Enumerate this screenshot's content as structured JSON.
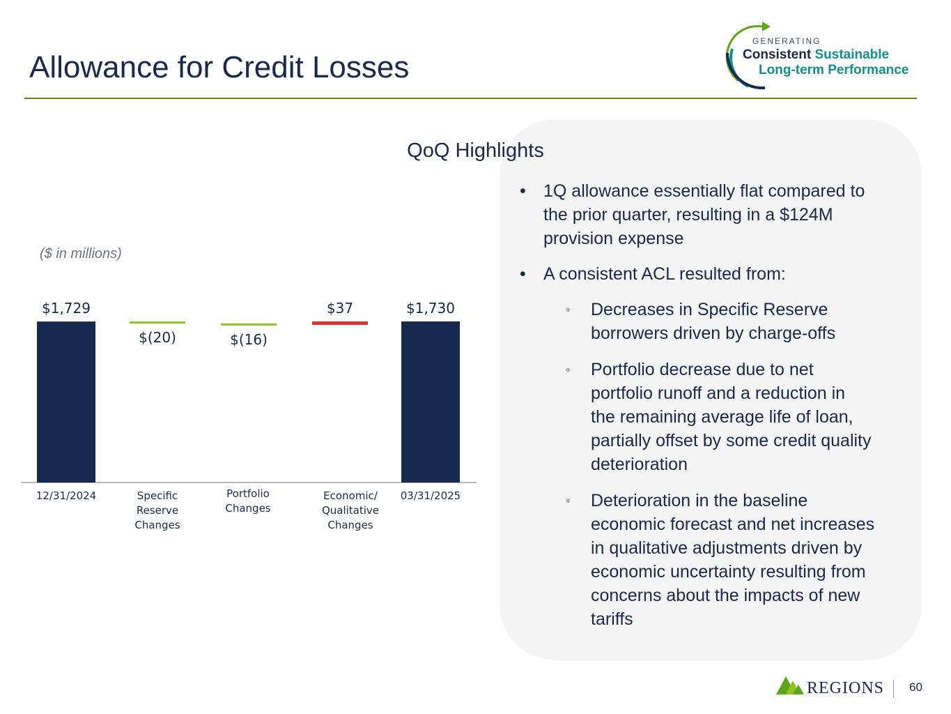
{
  "header": {
    "title": "Allowance for Credit Losses",
    "tagline": {
      "small": "GENERATING",
      "word1": "Consistent",
      "word2": "Sustainable",
      "line2": "Long-term Performance"
    }
  },
  "colors": {
    "navy": "#17294d",
    "decrease": "#8dc21f",
    "increase": "#e0322d",
    "rule": "#5e8a1f",
    "teal": "#13908a"
  },
  "chart_data": {
    "type": "bar",
    "subtype": "waterfall",
    "units_note": "($ in millions)",
    "categories": [
      [
        "12/31/2024"
      ],
      [
        "Specific",
        "Reserve",
        "Changes"
      ],
      [
        "Portfolio",
        "Changes"
      ],
      [
        "Economic/",
        "Qualitative",
        "Changes"
      ],
      [
        "03/31/2025"
      ]
    ],
    "values": [
      1729,
      -20,
      -16,
      37,
      1730
    ],
    "value_labels": [
      "$1,729",
      "$(20)",
      "$(16)",
      "$37",
      "$1,730"
    ],
    "kinds": [
      "total",
      "decrease",
      "decrease",
      "increase",
      "total"
    ],
    "ylim": [
      0,
      1800
    ],
    "title": "",
    "xlabel": "",
    "ylabel": ""
  },
  "highlights": {
    "title": "QoQ Highlights",
    "bullets": [
      {
        "level": 1,
        "lines": [
          "1Q allowance essentially flat compared to",
          "the prior quarter, resulting in a $124M",
          "provision expense"
        ]
      },
      {
        "level": 1,
        "lines": [
          "A consistent ACL resulted from:"
        ]
      },
      {
        "level": 2,
        "lines": [
          "Decreases in Specific Reserve",
          "borrowers driven by charge-offs"
        ]
      },
      {
        "level": 2,
        "lines": [
          "Portfolio decrease due to net",
          "portfolio runoff and a reduction in",
          "the remaining average life of loan,",
          "partially offset by some credit quality",
          "deterioration"
        ]
      },
      {
        "level": 2,
        "lines": [
          "Deterioration in the baseline",
          "economic forecast and net increases",
          "in qualitative adjustments driven by",
          "economic uncertainty resulting from",
          "concerns about the impacts of new",
          "tariffs"
        ]
      }
    ]
  },
  "footer": {
    "brand": "REGIONS",
    "page_number": "60"
  }
}
